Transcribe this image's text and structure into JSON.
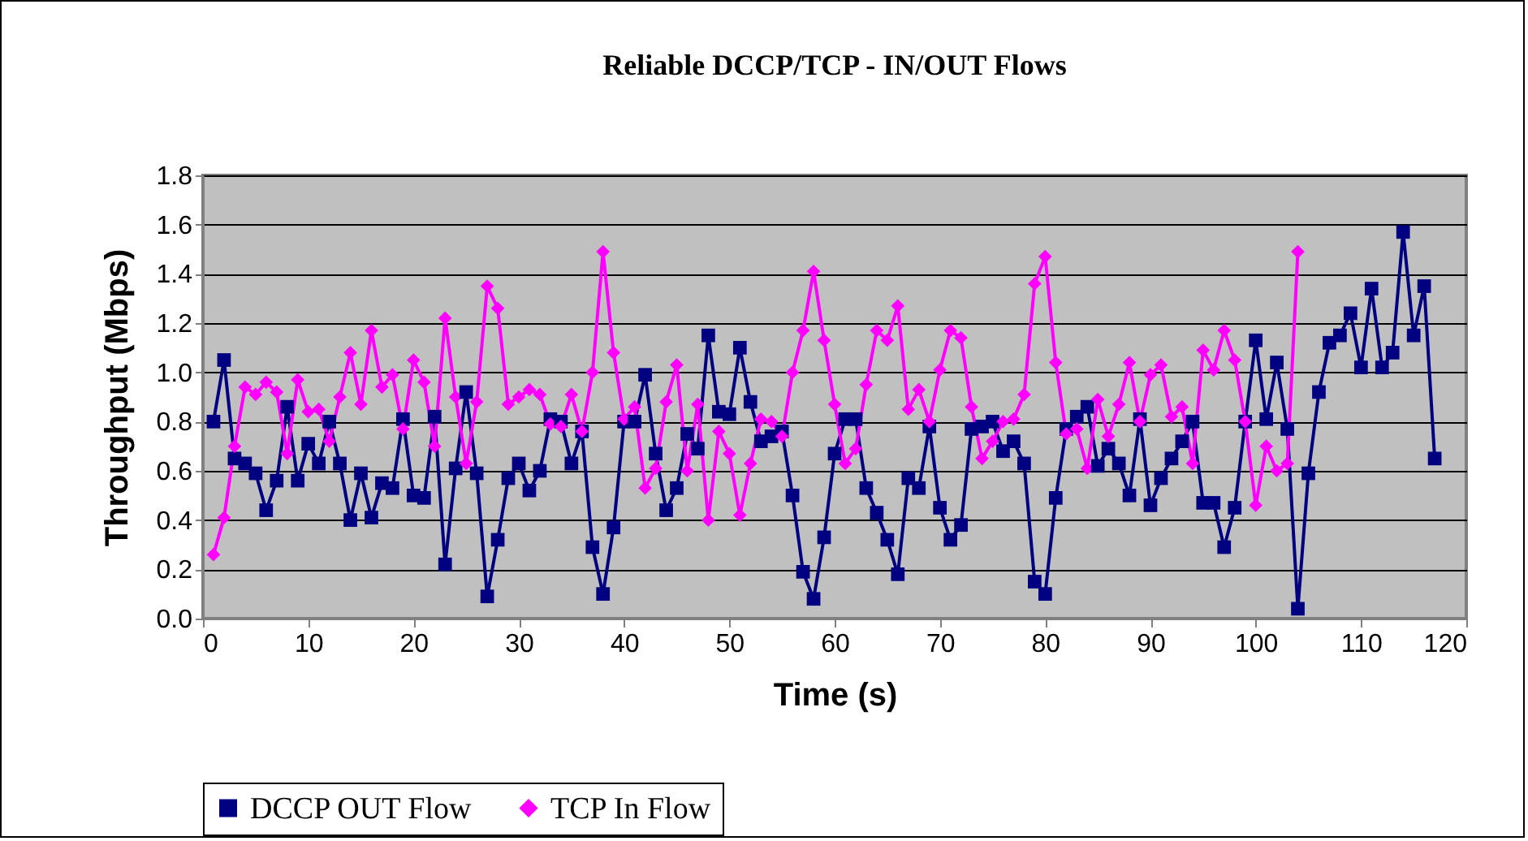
{
  "chart_data": {
    "type": "line",
    "title": "Reliable DCCP/TCP - IN/OUT Flows",
    "xlabel": "Time (s)",
    "ylabel": "Throughput (Mbps)",
    "xlim": [
      0,
      120
    ],
    "xticks": [
      0,
      10,
      20,
      30,
      40,
      50,
      60,
      70,
      80,
      90,
      100,
      110,
      120
    ],
    "ylim": [
      0,
      1.8
    ],
    "yticks": [
      {
        "value": 0,
        "label": "0.0"
      },
      {
        "value": 0.2,
        "label": "0.2"
      },
      {
        "value": 0.4,
        "label": "0.4"
      },
      {
        "value": 0.6,
        "label": "0.6"
      },
      {
        "value": 0.8,
        "label": "0.8"
      },
      {
        "value": 1.0,
        "label": "1.0"
      },
      {
        "value": 1.2,
        "label": "1.2"
      },
      {
        "value": 1.4,
        "label": "1.4"
      },
      {
        "value": 1.6,
        "label": "1.6"
      },
      {
        "value": 1.8,
        "label": "1.8"
      }
    ],
    "grid": "y",
    "legend": "bottom",
    "line_style": "solid",
    "series": [
      {
        "name": "DCCP OUT Flow",
        "color": "#000080",
        "marker": "square",
        "x": [
          1,
          2,
          3,
          4,
          5,
          6,
          7,
          8,
          9,
          10,
          11,
          12,
          13,
          14,
          15,
          16,
          17,
          18,
          19,
          20,
          21,
          22,
          23,
          24,
          25,
          26,
          27,
          28,
          29,
          30,
          31,
          32,
          33,
          34,
          35,
          36,
          37,
          38,
          39,
          40,
          41,
          42,
          43,
          44,
          45,
          46,
          47,
          48,
          49,
          50,
          51,
          52,
          53,
          54,
          55,
          56,
          57,
          58,
          59,
          60,
          61,
          62,
          63,
          64,
          65,
          66,
          67,
          68,
          69,
          70,
          71,
          72,
          73,
          74,
          75,
          76,
          77,
          78,
          79,
          80,
          81,
          82,
          83,
          84,
          85,
          86,
          87,
          88,
          89,
          90,
          91,
          92,
          93,
          94,
          95,
          96,
          97,
          98,
          99,
          100,
          101,
          102,
          103,
          104,
          105,
          106,
          107,
          108,
          109,
          110,
          111,
          112,
          113,
          114,
          115,
          116,
          117
        ],
        "values": [
          0.8,
          1.05,
          0.65,
          0.63,
          0.59,
          0.44,
          0.56,
          0.86,
          0.56,
          0.71,
          0.63,
          0.8,
          0.63,
          0.4,
          0.59,
          0.41,
          0.55,
          0.53,
          0.81,
          0.5,
          0.49,
          0.82,
          0.22,
          0.61,
          0.92,
          0.59,
          0.09,
          0.32,
          0.57,
          0.63,
          0.52,
          0.6,
          0.81,
          0.8,
          0.63,
          0.76,
          0.29,
          0.1,
          0.37,
          0.8,
          0.8,
          0.99,
          0.67,
          0.44,
          0.53,
          0.75,
          0.69,
          1.15,
          0.84,
          0.83,
          1.1,
          0.88,
          0.72,
          0.74,
          0.76,
          0.5,
          0.19,
          0.08,
          0.33,
          0.67,
          0.81,
          0.81,
          0.53,
          0.43,
          0.32,
          0.18,
          0.57,
          0.53,
          0.78,
          0.45,
          0.32,
          0.38,
          0.77,
          0.78,
          0.8,
          0.68,
          0.72,
          0.63,
          0.15,
          0.1,
          0.49,
          0.77,
          0.82,
          0.86,
          0.62,
          0.69,
          0.63,
          0.5,
          0.81,
          0.46,
          0.57,
          0.65,
          0.72,
          0.8,
          0.47,
          0.47,
          0.29,
          0.45,
          0.8,
          1.13,
          0.81,
          1.04,
          0.77,
          0.04,
          0.59,
          0.92,
          1.12,
          1.15,
          1.24,
          1.02,
          1.34,
          1.02,
          1.08,
          1.57,
          1.15,
          1.35,
          0.65
        ]
      },
      {
        "name": "TCP In Flow",
        "color": "#ff00ff",
        "marker": "diamond",
        "x": [
          1,
          2,
          3,
          4,
          5,
          6,
          7,
          8,
          9,
          10,
          11,
          12,
          13,
          14,
          15,
          16,
          17,
          18,
          19,
          20,
          21,
          22,
          23,
          24,
          25,
          26,
          27,
          28,
          29,
          30,
          31,
          32,
          33,
          34,
          35,
          36,
          37,
          38,
          39,
          40,
          41,
          42,
          43,
          44,
          45,
          46,
          47,
          48,
          49,
          50,
          51,
          52,
          53,
          54,
          55,
          56,
          57,
          58,
          59,
          60,
          61,
          62,
          63,
          64,
          65,
          66,
          67,
          68,
          69,
          70,
          71,
          72,
          73,
          74,
          75,
          76,
          77,
          78,
          79,
          80,
          81,
          82,
          83,
          84,
          85,
          86,
          87,
          88,
          89,
          90,
          91,
          92,
          93,
          94,
          95,
          96,
          97,
          98,
          99,
          100,
          101,
          102,
          103,
          104
        ],
        "values": [
          0.26,
          0.41,
          0.7,
          0.94,
          0.91,
          0.96,
          0.92,
          0.67,
          0.97,
          0.84,
          0.85,
          0.72,
          0.9,
          1.08,
          0.87,
          1.17,
          0.94,
          0.99,
          0.77,
          1.05,
          0.96,
          0.7,
          1.22,
          0.9,
          0.63,
          0.88,
          1.35,
          1.26,
          0.87,
          0.9,
          0.93,
          0.91,
          0.79,
          0.78,
          0.91,
          0.76,
          1.0,
          1.49,
          1.08,
          0.81,
          0.86,
          0.53,
          0.61,
          0.88,
          1.03,
          0.6,
          0.87,
          0.4,
          0.76,
          0.67,
          0.42,
          0.63,
          0.81,
          0.8,
          0.74,
          1.0,
          1.17,
          1.41,
          1.13,
          0.87,
          0.63,
          0.69,
          0.95,
          1.17,
          1.13,
          1.27,
          0.85,
          0.93,
          0.8,
          1.01,
          1.17,
          1.14,
          0.86,
          0.65,
          0.72,
          0.8,
          0.81,
          0.91,
          1.36,
          1.47,
          1.04,
          0.75,
          0.77,
          0.61,
          0.89,
          0.74,
          0.87,
          1.04,
          0.8,
          0.99,
          1.03,
          0.82,
          0.86,
          0.63,
          1.09,
          1.01,
          1.17,
          1.05,
          0.8,
          0.46,
          0.7,
          0.6,
          0.63,
          1.49
        ]
      }
    ]
  }
}
